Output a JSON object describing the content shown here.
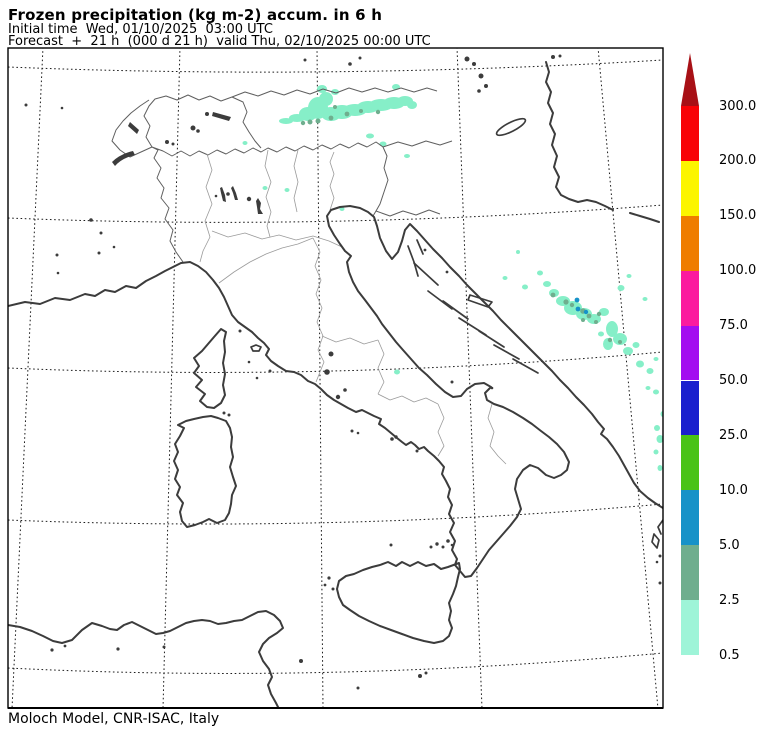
{
  "header": {
    "title": "Frozen precipitation (kg m-2) accum. in 6 h",
    "initial_time_line": "Initial time  Wed, 01/10/2025  03:00 UTC",
    "forecast_line": "Forecast  +  21 h  (000 d 21 h)  valid Thu, 02/10/2025 00:00 UTC"
  },
  "footer": {
    "credit": "Moloch Model, CNR-ISAC, Italy"
  },
  "colorbar": {
    "ticks": [
      "300.0",
      "200.0",
      "150.0",
      "100.0",
      "75.0",
      "50.0",
      "25.0",
      "10.0",
      "5.0",
      "2.5",
      "0.5"
    ],
    "colors_top_to_bottom": [
      "#f80307",
      "#fcf500",
      "#ef7d00",
      "#fb1b9e",
      "#a30df0",
      "#1a1fce",
      "#49c316",
      "#1792c8",
      "#6fae8e",
      "#9ef4d8"
    ],
    "arrow_color": "#a81016"
  },
  "map": {
    "colors": {
      "coast": "#3c3c3c",
      "national_border": "#5f5f5f",
      "region_border": "#9b9b9b",
      "graticule": "#1b1b1b",
      "frame": "#000000",
      "precip_light": "#86efc8",
      "precip_mid": "#6fae8e",
      "precip_heavy": "#1792c8"
    },
    "precip_classes_kg_m2": [
      "0.5-2.5",
      "2.5-5.0",
      "5.0-10.0"
    ],
    "regions_with_precip": [
      "Alps / Austria border band",
      "Dinarides-Balkans cluster",
      "Adriatic right-edge spots"
    ]
  }
}
